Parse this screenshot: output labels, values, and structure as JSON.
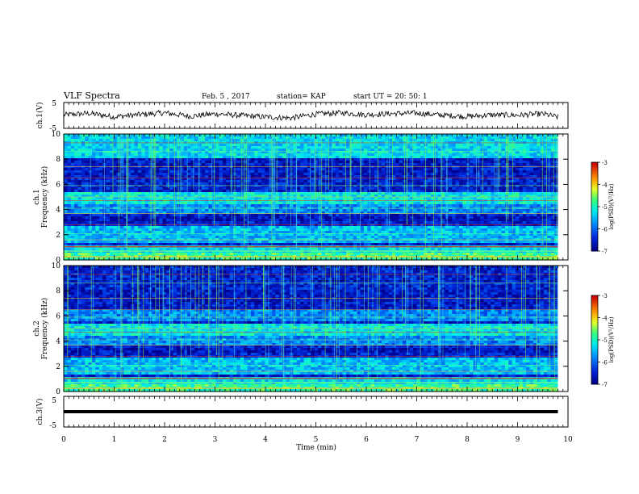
{
  "header": {
    "title": "VLF Spectra",
    "date": "Feb. 5 , 2017",
    "station": "station= KAP",
    "start": "start UT = 20: 50: 1"
  },
  "chart_data": [
    {
      "type": "line",
      "panel": "ch1-waveform",
      "ylabel": "ch.1(V)",
      "y_ticks": [
        "5",
        "-5"
      ],
      "ylim": [
        -5,
        5
      ],
      "xlim": [
        0,
        10
      ],
      "description_values": {
        "segments_x_min": [
          0,
          0.5,
          1,
          1.5,
          2,
          2.5,
          3,
          3.5,
          4,
          4.5,
          5,
          5.5,
          6,
          6.5,
          7,
          7.5,
          8,
          8.5,
          9,
          9.5,
          9.8
        ],
        "segments_y_v": [
          0.2,
          0.8,
          -0.5,
          0.3,
          1.0,
          -0.3,
          0.6,
          0.0,
          -0.6,
          -1.0,
          0.5,
          1.0,
          0.3,
          0.7,
          0.9,
          0.1,
          -0.4,
          0.2,
          0.1,
          0.6,
          -0.6
        ]
      }
    },
    {
      "type": "heatmap",
      "panel": "ch1-spectrogram",
      "ylabel": "ch.1\nFrequency (kHz)",
      "y_ticks": [
        "0",
        "2",
        "4",
        "6",
        "8",
        "10"
      ],
      "ylim": [
        0,
        10
      ],
      "xlim": [
        0,
        9.8
      ],
      "colorbar": {
        "label": "log(PSD)(V²/Hz)",
        "ticks": [
          "-3",
          "-4",
          "-5",
          "-6",
          "-7"
        ],
        "range": [
          -7,
          -3
        ]
      }
    },
    {
      "type": "heatmap",
      "panel": "ch2-spectrogram",
      "ylabel": "ch.2\nFrequency (kHz)",
      "y_ticks": [
        "0",
        "2",
        "4",
        "6",
        "8",
        "10"
      ],
      "ylim": [
        0,
        10
      ],
      "xlim": [
        0,
        9.8
      ],
      "colorbar": {
        "label": "log(PSD)(V²/Hz)",
        "ticks": [
          "-3",
          "-4",
          "-5",
          "-6",
          "-7"
        ],
        "range": [
          -7,
          -3
        ]
      }
    },
    {
      "type": "line",
      "panel": "ch3-waveform",
      "ylabel": "ch.3(V)",
      "y_ticks": [
        "5",
        "-5"
      ],
      "ylim": [
        -5,
        5
      ],
      "xlim": [
        0,
        9.8
      ],
      "values": {
        "x": [
          0,
          9.8
        ],
        "y": [
          0,
          0
        ]
      }
    }
  ],
  "x_axis": {
    "label": "Time (min)",
    "ticks": [
      "0",
      "1",
      "2",
      "3",
      "4",
      "5",
      "6",
      "7",
      "8",
      "9",
      "10"
    ]
  },
  "colors": {
    "axis": "#000000",
    "waveform": "#000000"
  }
}
